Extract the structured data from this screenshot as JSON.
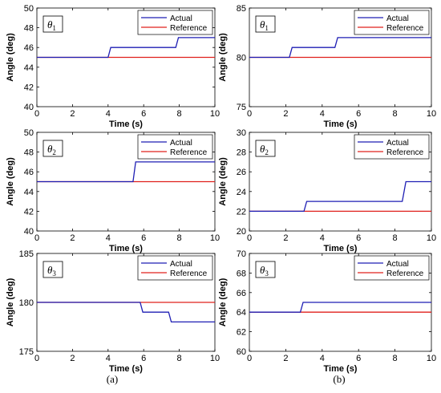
{
  "panel_labels": [
    "(a)",
    "(b)"
  ],
  "colors": {
    "actual": "#1f1fb4",
    "reference": "#e0201c",
    "axis": "#000000",
    "label_box": "#000000"
  },
  "chart_data": [
    {
      "type": "line",
      "panel": "(a)",
      "annotation": "θ1",
      "xlabel": "Time (s)",
      "ylabel": "Angle (deg)",
      "xlim": [
        0,
        10
      ],
      "ylim": [
        40,
        50
      ],
      "xticks": [
        0,
        2,
        4,
        6,
        8,
        10
      ],
      "yticks": [
        40,
        42,
        44,
        46,
        48,
        50
      ],
      "legend": "top-right",
      "series": [
        {
          "name": "Actual",
          "color": "#1f1fb4",
          "x": [
            0,
            4.0,
            4.15,
            7.8,
            7.95,
            10
          ],
          "y": [
            45,
            45,
            46,
            46,
            47,
            47
          ]
        },
        {
          "name": "Reference",
          "color": "#e0201c",
          "x": [
            0,
            10
          ],
          "y": [
            45,
            45
          ]
        }
      ]
    },
    {
      "type": "line",
      "panel": "(b)",
      "annotation": "θ1",
      "xlabel": "Time (s)",
      "ylabel": "Angle (deg)",
      "xlim": [
        0,
        10
      ],
      "ylim": [
        75,
        85
      ],
      "xticks": [
        0,
        2,
        4,
        6,
        8,
        10
      ],
      "yticks": [
        75,
        80,
        85
      ],
      "legend": "top-right",
      "series": [
        {
          "name": "Actual",
          "color": "#1f1fb4",
          "x": [
            0,
            2.2,
            2.35,
            4.7,
            4.85,
            10
          ],
          "y": [
            80,
            80,
            81,
            81,
            82,
            82
          ]
        },
        {
          "name": "Reference",
          "color": "#e0201c",
          "x": [
            0,
            10
          ],
          "y": [
            80,
            80
          ]
        }
      ]
    },
    {
      "type": "line",
      "panel": "(a)",
      "annotation": "θ2",
      "xlabel": "Time (s)",
      "ylabel": "Angle (deg)",
      "xlim": [
        0,
        10
      ],
      "ylim": [
        40,
        50
      ],
      "xticks": [
        0,
        2,
        4,
        6,
        8,
        10
      ],
      "yticks": [
        40,
        42,
        44,
        46,
        48,
        50
      ],
      "legend": "top-right",
      "series": [
        {
          "name": "Actual",
          "color": "#1f1fb4",
          "x": [
            0,
            5.4,
            5.55,
            10
          ],
          "y": [
            45,
            45,
            47,
            47
          ]
        },
        {
          "name": "Reference",
          "color": "#e0201c",
          "x": [
            0,
            10
          ],
          "y": [
            45,
            45
          ]
        }
      ]
    },
    {
      "type": "line",
      "panel": "(b)",
      "annotation": "θ2",
      "xlabel": "Time (s)",
      "ylabel": "Angle (deg)",
      "xlim": [
        0,
        10
      ],
      "ylim": [
        20,
        30
      ],
      "xticks": [
        0,
        2,
        4,
        6,
        8,
        10
      ],
      "yticks": [
        20,
        22,
        24,
        26,
        28,
        30
      ],
      "legend": "top-right",
      "series": [
        {
          "name": "Actual",
          "color": "#1f1fb4",
          "x": [
            0,
            3.0,
            3.15,
            8.4,
            8.6,
            10
          ],
          "y": [
            22,
            22,
            23,
            23,
            25,
            25
          ]
        },
        {
          "name": "Reference",
          "color": "#e0201c",
          "x": [
            0,
            10
          ],
          "y": [
            22,
            22
          ]
        }
      ]
    },
    {
      "type": "line",
      "panel": "(a)",
      "annotation": "θ3",
      "xlabel": "Time (s)",
      "ylabel": "Angle (deg)",
      "xlim": [
        0,
        10
      ],
      "ylim": [
        175,
        185
      ],
      "xticks": [
        0,
        2,
        4,
        6,
        8,
        10
      ],
      "yticks": [
        175,
        180,
        185
      ],
      "legend": "top-right",
      "series": [
        {
          "name": "Actual",
          "color": "#1f1fb4",
          "x": [
            0,
            5.8,
            5.95,
            7.4,
            7.55,
            10
          ],
          "y": [
            180,
            180,
            179,
            179,
            178,
            178
          ]
        },
        {
          "name": "Reference",
          "color": "#e0201c",
          "x": [
            0,
            10
          ],
          "y": [
            180,
            180
          ]
        }
      ]
    },
    {
      "type": "line",
      "panel": "(b)",
      "annotation": "θ3",
      "xlabel": "Time (s)",
      "ylabel": "Angle (deg)",
      "xlim": [
        0,
        10
      ],
      "ylim": [
        60,
        70
      ],
      "xticks": [
        0,
        2,
        4,
        6,
        8,
        10
      ],
      "yticks": [
        60,
        62,
        64,
        66,
        68,
        70
      ],
      "legend": "top-right",
      "series": [
        {
          "name": "Actual",
          "color": "#1f1fb4",
          "x": [
            0,
            2.8,
            2.95,
            10
          ],
          "y": [
            64,
            64,
            65,
            65
          ]
        },
        {
          "name": "Reference",
          "color": "#e0201c",
          "x": [
            0,
            10
          ],
          "y": [
            64,
            64
          ]
        }
      ]
    }
  ]
}
